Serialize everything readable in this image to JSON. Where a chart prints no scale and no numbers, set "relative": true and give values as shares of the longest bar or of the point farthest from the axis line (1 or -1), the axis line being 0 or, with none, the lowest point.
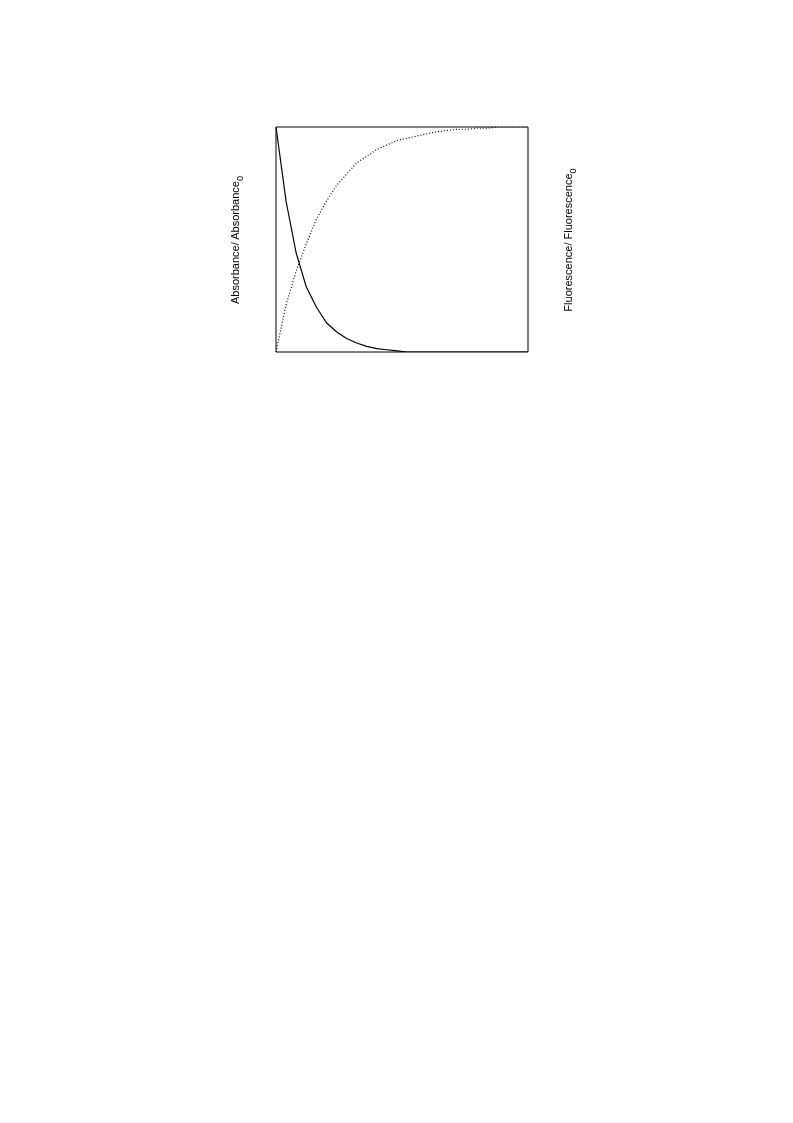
{
  "chart_data": {
    "type": "line",
    "relative": true,
    "ylabel": "Absorbance/ Absorbance$_{0}$",
    "y2label": "Fluorescence/ Fluorescence$_{0}$",
    "categories": [
      null,
      null,
      null,
      null,
      null,
      null,
      null,
      null,
      null,
      null,
      null,
      null,
      null,
      null,
      null,
      null,
      null,
      null,
      null,
      null,
      null,
      null,
      null,
      null,
      null,
      null
    ],
    "series": [
      {
        "color": "#000000",
        "line_style": "solid",
        "values": [
          1.0,
          0.67,
          0.44,
          0.29,
          0.2,
          0.13,
          0.09,
          0.06,
          0.04,
          0.025,
          0.015,
          0.01,
          0.005,
          0,
          0,
          0,
          0,
          0,
          0,
          0,
          0,
          0,
          0,
          0,
          0,
          0
        ]
      },
      {
        "color": "#000000",
        "line_style": "dotted",
        "values": [
          0,
          0.21,
          0.36,
          0.48,
          0.59,
          0.67,
          0.74,
          0.79,
          0.84,
          0.87,
          0.9,
          0.92,
          0.94,
          0.95,
          0.96,
          0.97,
          0.98,
          0.985,
          0.99,
          0.99,
          0.995,
          0.995,
          1,
          1,
          1,
          1
        ]
      }
    ],
    "marker": "none",
    "legend": false
  }
}
